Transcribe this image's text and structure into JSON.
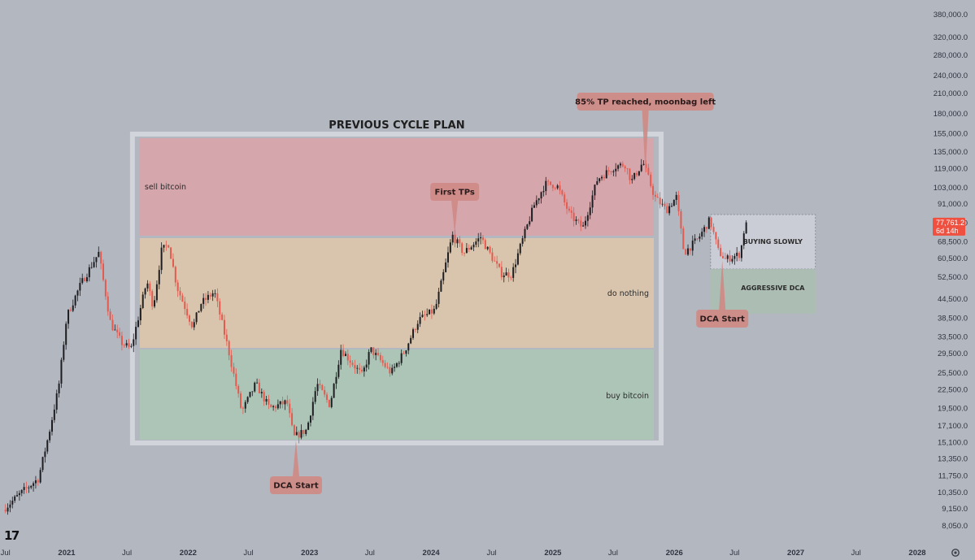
{
  "chart_data": {
    "type": "candlestick",
    "title": "PREVIOUS CYCLE PLAN",
    "y_scale": "log",
    "ylim": [
      7600,
      430000
    ],
    "y_ticks": [
      8050,
      9150,
      10350,
      11750,
      13350,
      15100,
      17100,
      19500,
      22500,
      25500,
      29500,
      33500,
      38500,
      44500,
      52500,
      60500,
      68500,
      79000,
      91000,
      103000,
      119000,
      135000,
      155000,
      180000,
      210000,
      240000,
      280000,
      320000,
      380000
    ],
    "y_tick_labels": [
      "8,050.0",
      "9,150.0",
      "10,350.0",
      "11,750.0",
      "13,350.0",
      "15,100.0",
      "17,100.0",
      "19,500.0",
      "22,500.0",
      "25,500.0",
      "29,500.0",
      "33,500.0",
      "38,500.0",
      "44,500.0",
      "52,500.0",
      "60,500.0",
      "68,500.0",
      "79,000.0",
      "91,000.0",
      "103,000.0",
      "119,000.0",
      "135,000.0",
      "155,000.0",
      "180,000.0",
      "210,000.0",
      "240,000.0",
      "280,000.0",
      "320,000.0",
      "380,000.0"
    ],
    "x_ticks": [
      {
        "label": "Jul",
        "date": "2020-07",
        "bold": false
      },
      {
        "label": "2021",
        "date": "2021-01",
        "bold": true
      },
      {
        "label": "Jul",
        "date": "2021-07",
        "bold": false
      },
      {
        "label": "2022",
        "date": "2022-01",
        "bold": true
      },
      {
        "label": "Jul",
        "date": "2022-07",
        "bold": false
      },
      {
        "label": "2023",
        "date": "2023-01",
        "bold": true
      },
      {
        "label": "Jul",
        "date": "2023-07",
        "bold": false
      },
      {
        "label": "2024",
        "date": "2024-01",
        "bold": true
      },
      {
        "label": "Jul",
        "date": "2024-07",
        "bold": false
      },
      {
        "label": "2025",
        "date": "2025-01",
        "bold": true
      },
      {
        "label": "Jul",
        "date": "2025-07",
        "bold": false
      },
      {
        "label": "2026",
        "date": "2026-01",
        "bold": true
      },
      {
        "label": "Jul",
        "date": "2026-07",
        "bold": false
      },
      {
        "label": "2027",
        "date": "2027-01",
        "bold": true
      },
      {
        "label": "Jul",
        "date": "2027-07",
        "bold": false
      },
      {
        "label": "2028",
        "date": "2028-01",
        "bold": true
      }
    ],
    "price_path": [
      [
        "2020-07-01",
        9100
      ],
      [
        "2020-09-01",
        10500
      ],
      [
        "2020-10-15",
        11500
      ],
      [
        "2020-11-15",
        16000
      ],
      [
        "2020-12-15",
        23000
      ],
      [
        "2021-01-08",
        39000
      ],
      [
        "2021-02-20",
        50000
      ],
      [
        "2021-04-14",
        63000
      ],
      [
        "2021-05-20",
        37000
      ],
      [
        "2021-06-22",
        32000
      ],
      [
        "2021-07-20",
        30500
      ],
      [
        "2021-09-06",
        51000
      ],
      [
        "2021-09-25",
        42000
      ],
      [
        "2021-10-20",
        64000
      ],
      [
        "2021-11-10",
        67500
      ],
      [
        "2021-12-05",
        49000
      ],
      [
        "2022-01-22",
        36000
      ],
      [
        "2022-02-15",
        43000
      ],
      [
        "2022-03-28",
        47000
      ],
      [
        "2022-05-10",
        30000
      ],
      [
        "2022-06-18",
        19000
      ],
      [
        "2022-07-30",
        23500
      ],
      [
        "2022-09-10",
        19500
      ],
      [
        "2022-11-01",
        20500
      ],
      [
        "2022-11-21",
        15700
      ],
      [
        "2022-12-30",
        16600
      ],
      [
        "2023-01-30",
        23500
      ],
      [
        "2023-03-10",
        20000
      ],
      [
        "2023-04-12",
        30500
      ],
      [
        "2023-06-15",
        25000
      ],
      [
        "2023-07-10",
        30500
      ],
      [
        "2023-09-10",
        25500
      ],
      [
        "2023-10-20",
        30000
      ],
      [
        "2023-12-01",
        38000
      ],
      [
        "2024-01-20",
        41000
      ],
      [
        "2024-03-12",
        72000
      ],
      [
        "2024-04-15",
        63000
      ],
      [
        "2024-06-05",
        71000
      ],
      [
        "2024-08-05",
        54000
      ],
      [
        "2024-09-06",
        53500
      ],
      [
        "2024-09-30",
        65000
      ],
      [
        "2024-11-12",
        90000
      ],
      [
        "2024-12-16",
        106000
      ],
      [
        "2025-01-20",
        105000
      ],
      [
        "2025-02-28",
        84000
      ],
      [
        "2025-04-08",
        76000
      ],
      [
        "2025-05-22",
        110000
      ],
      [
        "2025-07-14",
        121000
      ],
      [
        "2025-08-14",
        123000
      ],
      [
        "2025-09-01",
        108000
      ],
      [
        "2025-10-06",
        125000
      ],
      [
        "2025-11-10",
        96000
      ],
      [
        "2025-12-15",
        87000
      ],
      [
        "2026-01-14",
        96000
      ],
      [
        "2026-02-06",
        63000
      ],
      [
        "2026-03-20",
        70000
      ],
      [
        "2026-04-25",
        81000
      ],
      [
        "2026-05-20",
        64000
      ],
      [
        "2026-06-10",
        60000
      ],
      [
        "2026-07-25",
        62500
      ],
      [
        "2026-08-08",
        77761
      ]
    ],
    "last_price": "77,761.2",
    "countdown": "6d 14h",
    "zones": [
      {
        "label": "sell bitcoin",
        "color": "#e0a0a4"
      },
      {
        "label": "do nothing",
        "color": "#e5c9a7"
      },
      {
        "label": "buy bitcoin",
        "color": "#a9c9b3"
      },
      {
        "label": "BUYING SLOWLY",
        "color": "#d0d3dc"
      },
      {
        "label": "AGGRESSIVE DCA",
        "color": "#a9c0b0"
      }
    ],
    "callouts": [
      {
        "text": "DCA Start",
        "date": "2022-11-21",
        "price": 15700
      },
      {
        "text": "First TPs",
        "date": "2024-03-12",
        "price": 72000
      },
      {
        "text": "85% TP reached, moonbag left",
        "date": "2025-10-06",
        "price": 110000
      },
      {
        "text": "DCA Start",
        "date": "2026-05-25",
        "price": 60500
      }
    ],
    "colors": {
      "background": "#b3b7bf",
      "up": "#1e1e22",
      "down": "#e35a4f",
      "callout_fill": "#cf8a85",
      "price_tag": "#f0503f"
    }
  },
  "branding": {
    "logo_icon": "tradingview-logo-icon",
    "logo_text": "17"
  },
  "settings_icon": "gear-icon"
}
